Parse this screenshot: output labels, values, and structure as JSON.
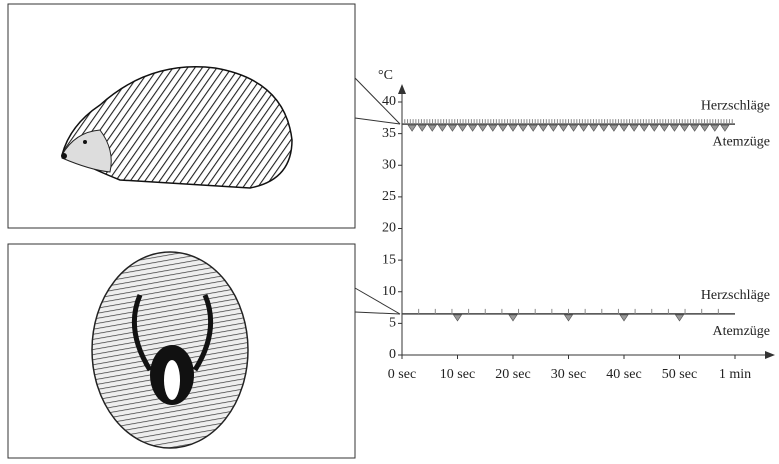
{
  "chart_data": {
    "type": "line",
    "ylabel": "°C",
    "ylim": [
      0,
      40
    ],
    "yticks": [
      0,
      5,
      10,
      15,
      20,
      25,
      30,
      35,
      40
    ],
    "xlim": [
      0,
      60
    ],
    "xticks": [
      {
        "value": 0,
        "label": "0 sec"
      },
      {
        "value": 10,
        "label": "10 sec"
      },
      {
        "value": 20,
        "label": "20 sec"
      },
      {
        "value": 30,
        "label": "30 sec"
      },
      {
        "value": 40,
        "label": "40 sec"
      },
      {
        "value": 50,
        "label": "50 sec"
      },
      {
        "value": 60,
        "label": "1 min"
      }
    ],
    "x": [
      0,
      60
    ],
    "series": [
      {
        "color": "#444",
        "values": [
          36.5,
          36.5
        ],
        "heartbeats_per_min": 120,
        "breaths_per_min": 33,
        "labels": [
          "Herzschläge",
          "Atemzüge"
        ]
      },
      {
        "color": "#444",
        "values": [
          6.5,
          6.5
        ],
        "heartbeats_per_min": 20,
        "breaths_per_min": 6,
        "labels": [
          "Herzschläge",
          "Atemzüge"
        ]
      }
    ]
  }
}
